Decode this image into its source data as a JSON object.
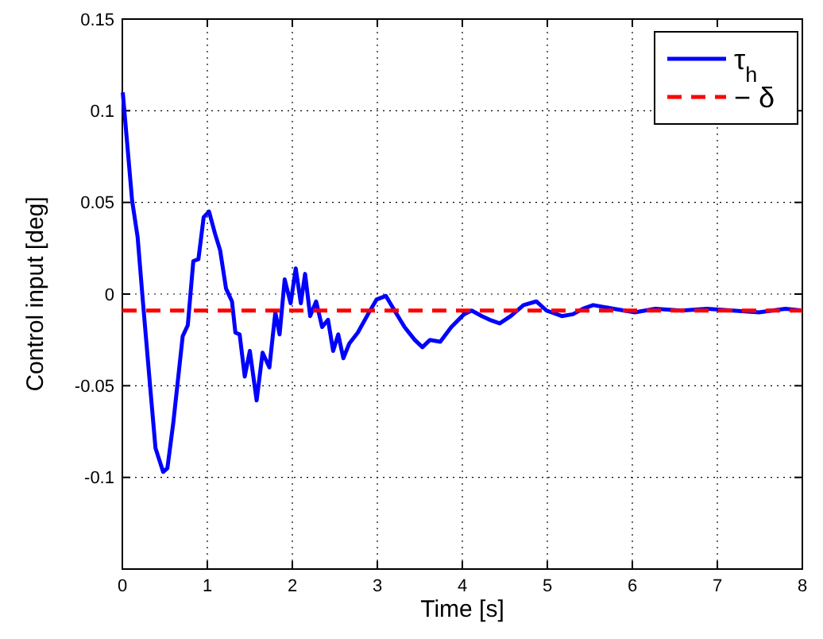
{
  "chart_data": {
    "type": "line",
    "xlabel": "Time [s]",
    "ylabel": "Control input [deg]",
    "xlim": [
      0,
      8
    ],
    "ylim": [
      -0.15,
      0.15
    ],
    "xticks": [
      0,
      1,
      2,
      3,
      4,
      5,
      6,
      7,
      8
    ],
    "yticks": [
      {
        "value": -0.15,
        "label": null
      },
      {
        "value": -0.1,
        "label": "-0.1"
      },
      {
        "value": -0.05,
        "label": "-0.05"
      },
      0,
      0.05,
      0.1,
      0.15
    ],
    "grid": true,
    "legend": "top right",
    "series": [
      {
        "name": "τ$_{h}$",
        "color": "#0000ff",
        "line_style": "solid",
        "x": [
          0.005,
          0.115,
          0.18,
          0.24,
          0.33,
          0.39,
          0.48,
          0.53,
          0.6,
          0.71,
          0.77,
          0.835,
          0.895,
          0.957,
          1.02,
          1.09,
          1.15,
          1.22,
          1.29,
          1.33,
          1.38,
          1.44,
          1.5,
          1.58,
          1.65,
          1.73,
          1.8,
          1.85,
          1.91,
          1.98,
          2.04,
          2.1,
          2.15,
          2.21,
          2.28,
          2.35,
          2.42,
          2.48,
          2.54,
          2.6,
          2.67,
          2.77,
          2.89,
          2.99,
          3.1,
          3.19,
          3.32,
          3.44,
          3.53,
          3.62,
          3.74,
          3.87,
          4.02,
          4.11,
          4.23,
          4.32,
          4.44,
          4.57,
          4.72,
          4.87,
          4.99,
          5.17,
          5.3,
          5.42,
          5.54,
          5.78,
          6.03,
          6.27,
          6.58,
          6.88,
          7.18,
          7.49,
          7.8,
          8
        ],
        "values": [
          0.11,
          0.051,
          0.031,
          -0.003,
          -0.052,
          -0.084,
          -0.097,
          -0.095,
          -0.07,
          -0.023,
          -0.017,
          0.018,
          0.019,
          0.042,
          0.045,
          0.033,
          0.024,
          0.003,
          -0.004,
          -0.021,
          -0.022,
          -0.045,
          -0.031,
          -0.058,
          -0.032,
          -0.04,
          -0.01,
          -0.022,
          0.008,
          -0.005,
          0.014,
          -0.005,
          0.011,
          -0.012,
          -0.004,
          -0.018,
          -0.014,
          -0.031,
          -0.022,
          -0.035,
          -0.027,
          -0.021,
          -0.011,
          -0.003,
          -0.001,
          -0.008,
          -0.018,
          -0.025,
          -0.029,
          -0.025,
          -0.026,
          -0.018,
          -0.011,
          -0.009,
          -0.012,
          -0.014,
          -0.016,
          -0.012,
          -0.006,
          -0.004,
          -0.009,
          -0.012,
          -0.011,
          -0.008,
          -0.006,
          -0.008,
          -0.01,
          -0.008,
          -0.009,
          -0.008,
          -0.009,
          -0.01,
          -0.008,
          -0.009
        ]
      },
      {
        "name": "− δ",
        "color": "#ff0000",
        "line_style": "dashed",
        "x": [
          0,
          8
        ],
        "values": [
          -0.009,
          -0.009
        ]
      }
    ]
  }
}
